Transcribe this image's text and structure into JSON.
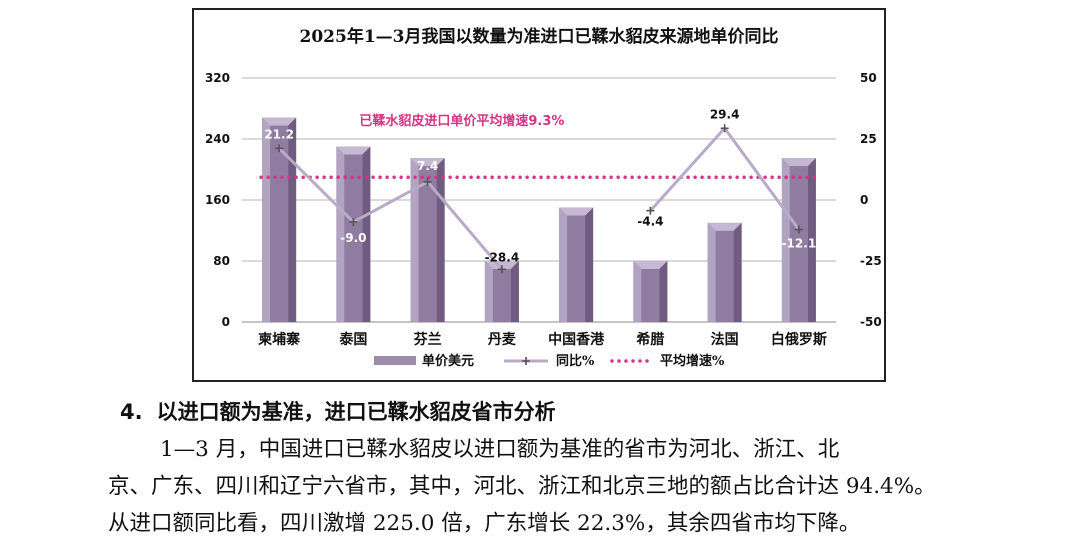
{
  "chart_data": {
    "type": "bar+line",
    "title": "2025年1—3月我国以数量为准进口已鞣水貂皮来源地单价同比",
    "categories": [
      "柬埔寨",
      "泰国",
      "芬兰",
      "丹麦",
      "中国香港",
      "希腊",
      "法国",
      "白俄罗斯"
    ],
    "bar_series": {
      "name": "单价美元",
      "axis": "left",
      "values": [
        268,
        230,
        215,
        80,
        150,
        80,
        130,
        215
      ],
      "color": "#9b88aa"
    },
    "line_series": {
      "name": "同比%",
      "axis": "right",
      "values": [
        21.2,
        -9.0,
        7.4,
        -28.4,
        null,
        -4.4,
        29.4,
        -12.1
      ],
      "labels": [
        "21.2",
        "-9.0",
        "7.4",
        "-28.4",
        "",
        "-4.4",
        "29.4",
        "-12.1"
      ],
      "color": "#b8aac8"
    },
    "average_series": {
      "name": "平均增速%",
      "axis": "right",
      "value": 9.3,
      "color": "#d63384",
      "annotation": "已鞣水貂皮进口单价平均增速9.3%"
    },
    "left_axis": {
      "ylim": [
        0,
        320
      ],
      "ticks": [
        "0",
        "80",
        "160",
        "240",
        "320"
      ]
    },
    "right_axis": {
      "ylim": [
        -50,
        50
      ],
      "ticks": [
        "-50",
        "-25",
        "0",
        "25",
        "50"
      ]
    },
    "grid": true,
    "legend": "bottom"
  },
  "text": {
    "heading_number": "4.",
    "heading": "以进口额为基准，进口已鞣水貂皮省市分析",
    "paragraph": [
      "1—3 月，中国进口已鞣水貂皮以进口额为基准的省市为河北、浙江、北",
      "京、广东、四川和辽宁六省市，其中，河北、浙江和北京三地的额占比合计达 94.4%。",
      "从进口额同比看，四川激增 225.0 倍，广东增长 22.3%，其余四省市均下降。"
    ]
  }
}
